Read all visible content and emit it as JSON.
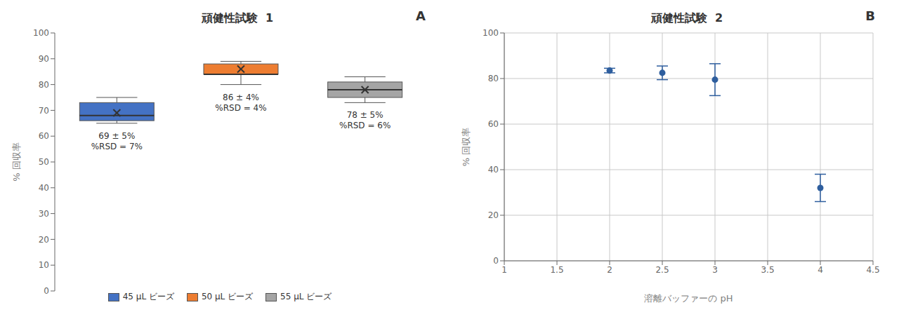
{
  "chart_data": [
    {
      "type": "box",
      "title": "頑健性試験  1",
      "panel_label": "A",
      "y_label": "% 回収率",
      "ylim": [
        0,
        100
      ],
      "yticks": [
        0,
        10,
        20,
        30,
        40,
        50,
        60,
        70,
        80,
        90,
        100
      ],
      "grid": false,
      "legend": "bottom",
      "tick_labels": "y",
      "marker": "x",
      "series": [
        {
          "name": "45 μL ビーズ",
          "color": "#4472c4",
          "median": 68,
          "q1": 66,
          "q3": 73,
          "whisker_low": 65,
          "whisker_high": 75,
          "mean": 69,
          "annotation": "69 ± 5%\n%RSD = 7%"
        },
        {
          "name": "50 μL ビーズ",
          "color": "#ed7d31",
          "median": 84,
          "q1": 84,
          "q3": 88,
          "whisker_low": 80,
          "whisker_high": 89,
          "mean": 86,
          "annotation": "86 ± 4%\n%RSD = 4%"
        },
        {
          "name": "55 μL ビーズ",
          "color": "#a5a5a5",
          "median": 78,
          "q1": 75,
          "q3": 81,
          "whisker_low": 73,
          "whisker_high": 83,
          "mean": 78,
          "annotation": "78 ± 5%\n%RSD = 6%"
        }
      ]
    },
    {
      "type": "scatter",
      "title": "頑健性試験  2",
      "panel_label": "B",
      "x_label": "溶離バッファーの pH",
      "y_label": "% 回収率",
      "x": [
        2.0,
        2.5,
        3.0,
        4.0
      ],
      "values": [
        83.5,
        82.5,
        79.5,
        32.0
      ],
      "errors": [
        1.0,
        3.0,
        7.0,
        6.0
      ],
      "color": "#2e5e9e",
      "marker": "circle",
      "xlim": [
        1.0,
        4.5
      ],
      "ylim": [
        0,
        100
      ],
      "xticks": [
        1.0,
        1.5,
        2.0,
        2.5,
        3.0,
        3.5,
        4.0,
        4.5
      ],
      "yticks": [
        0,
        20,
        40,
        60,
        80,
        100
      ],
      "grid": true
    }
  ]
}
